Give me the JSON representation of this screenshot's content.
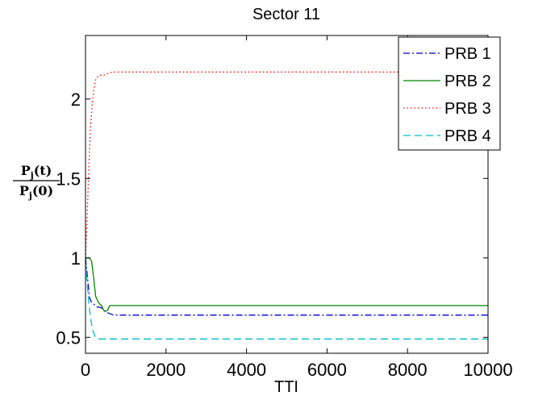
{
  "chart_data": {
    "type": "line",
    "title": "Sector 11",
    "xlabel": "TTI",
    "ylabel": {
      "num": "P",
      "num_sub": "j",
      "num_arg": "(t)",
      "den": "P",
      "den_sub": "j",
      "den_arg": "(0)"
    },
    "xlim": [
      0,
      10000
    ],
    "ylim": [
      0.4,
      2.4
    ],
    "xticks": [
      0,
      2000,
      4000,
      6000,
      8000,
      10000
    ],
    "yticks": [
      0.5,
      1,
      1.5,
      2
    ],
    "ytick_labels": [
      "0.5",
      "1",
      "1.5",
      "2"
    ],
    "grid": false,
    "legend_position": "top-right",
    "series": [
      {
        "name": "PRB 1",
        "color": "#0000cc",
        "dash": "dash-dot",
        "x": [
          0,
          60,
          100,
          150,
          200,
          250,
          300,
          350,
          400,
          450,
          500,
          550,
          600,
          650,
          700,
          800,
          1000,
          2000,
          5000,
          10000
        ],
        "y": [
          1.0,
          0.85,
          0.75,
          0.72,
          0.71,
          0.7,
          0.69,
          0.69,
          0.685,
          0.67,
          0.66,
          0.655,
          0.65,
          0.645,
          0.64,
          0.64,
          0.64,
          0.64,
          0.64,
          0.64
        ]
      },
      {
        "name": "PRB 2",
        "color": "#008800",
        "dash": "solid",
        "x": [
          0,
          50,
          100,
          150,
          200,
          250,
          300,
          350,
          400,
          450,
          500,
          550,
          600,
          700,
          800,
          1000,
          2000,
          5000,
          10000
        ],
        "y": [
          1.0,
          1.0,
          1.0,
          0.98,
          0.88,
          0.76,
          0.73,
          0.71,
          0.7,
          0.67,
          0.665,
          0.67,
          0.7,
          0.7,
          0.7,
          0.7,
          0.7,
          0.7,
          0.7
        ]
      },
      {
        "name": "PRB 3",
        "color": "#ff0000",
        "dash": "dotted",
        "x": [
          0,
          40,
          80,
          120,
          160,
          200,
          250,
          300,
          350,
          400,
          450,
          500,
          600,
          700,
          800,
          1000,
          2000,
          5000,
          10000
        ],
        "y": [
          1.0,
          1.25,
          1.55,
          1.8,
          1.95,
          2.05,
          2.12,
          2.14,
          2.15,
          2.15,
          2.15,
          2.155,
          2.165,
          2.17,
          2.17,
          2.17,
          2.17,
          2.17,
          2.17
        ]
      },
      {
        "name": "PRB 4",
        "color": "#00bbcc",
        "dash": "dashed",
        "x": [
          0,
          40,
          80,
          120,
          160,
          200,
          250,
          300,
          350,
          400,
          500,
          600,
          800,
          1000,
          2000,
          5000,
          10000
        ],
        "y": [
          0.97,
          0.85,
          0.72,
          0.63,
          0.57,
          0.53,
          0.5,
          0.49,
          0.49,
          0.49,
          0.49,
          0.49,
          0.49,
          0.49,
          0.49,
          0.49,
          0.49
        ]
      }
    ]
  }
}
